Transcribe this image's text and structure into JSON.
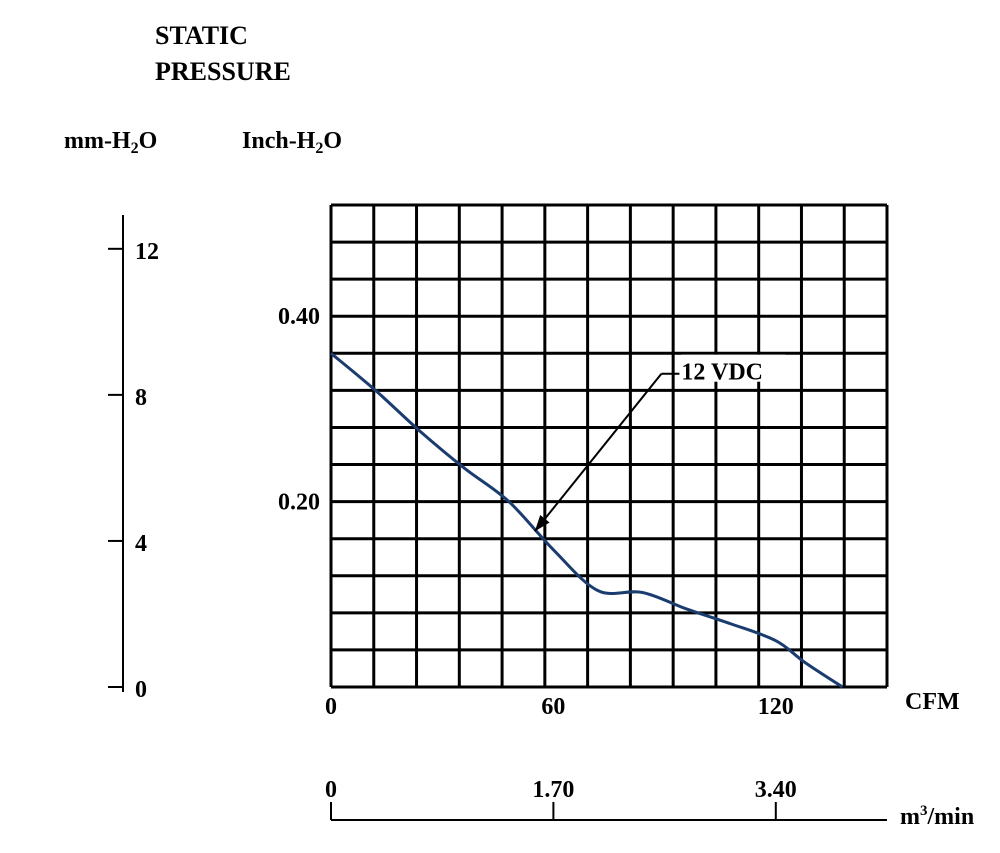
{
  "chart_data": {
    "type": "line",
    "title_lines": [
      "STATIC",
      "PRESSURE"
    ],
    "y_units": {
      "mm": {
        "prefix": "mm-H",
        "sub": "2",
        "suffix": "O"
      },
      "inch": {
        "prefix": "Inch-H",
        "sub": "2",
        "suffix": "O"
      }
    },
    "x_units": {
      "cfm": "CFM",
      "m3": {
        "prefix": "m",
        "sup": "3",
        "suffix": "/min"
      }
    },
    "grid": true,
    "grid_columns": 13,
    "grid_rows": 13,
    "xlim": [
      0,
      150
    ],
    "ylim_inch": [
      0,
      0.52
    ],
    "ylim_mm": [
      0,
      13.2
    ],
    "cfm_ticks": [
      {
        "value": 0,
        "label": "0"
      },
      {
        "value": 60,
        "label": "60"
      },
      {
        "value": 120,
        "label": "120"
      }
    ],
    "inch_ticks": [
      {
        "value": 0.2,
        "label": "0.20"
      },
      {
        "value": 0.4,
        "label": "0.40"
      }
    ],
    "mm_ticks": [
      {
        "value": 0,
        "label": "0"
      },
      {
        "value": 4,
        "label": "4"
      },
      {
        "value": 8,
        "label": "8"
      },
      {
        "value": 12,
        "label": "12"
      }
    ],
    "m3_ticks": [
      {
        "value": 0,
        "label": "0"
      },
      {
        "value": 1.7,
        "label": "1.70"
      },
      {
        "value": 3.4,
        "label": "3.40"
      }
    ],
    "m3_max": 4.25,
    "series": [
      {
        "name": "12 VDC",
        "color": "#1a3c6e",
        "points": [
          [
            0,
            0.36
          ],
          [
            12,
            0.32
          ],
          [
            24,
            0.276
          ],
          [
            36,
            0.236
          ],
          [
            48,
            0.2
          ],
          [
            60,
            0.148
          ],
          [
            72,
            0.104
          ],
          [
            84,
            0.102
          ],
          [
            96,
            0.084
          ],
          [
            108,
            0.068
          ],
          [
            120,
            0.05
          ],
          [
            128,
            0.026
          ],
          [
            138,
            0
          ]
        ]
      }
    ],
    "annotation": {
      "text": "12 VDC",
      "points_to": [
        55,
        0.168
      ],
      "label_at": [
        94,
        0.338
      ]
    }
  }
}
